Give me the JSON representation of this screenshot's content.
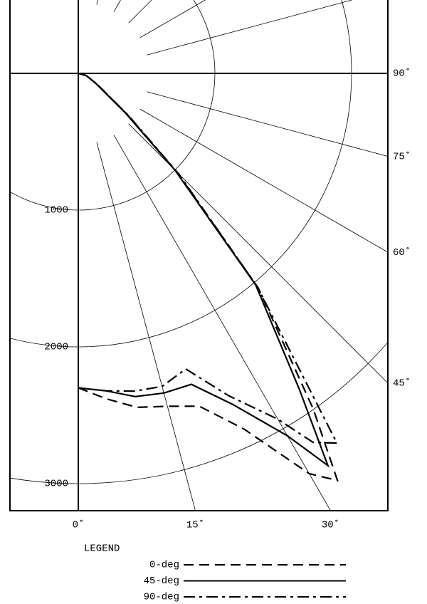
{
  "chart_data": {
    "type": "polar",
    "x": [
      0,
      5,
      10,
      15,
      20,
      25,
      30,
      32.5,
      35,
      40,
      45,
      50,
      60,
      75,
      90
    ],
    "series": [
      {
        "name": "0-deg",
        "color": "#000000",
        "line_style": "dashed",
        "values": [
          2300,
          2390,
          2480,
          2520,
          2590,
          2870,
          3380,
          3530,
          3000,
          2050,
          1020,
          470,
          160,
          60,
          0
        ]
      },
      {
        "name": "45-deg",
        "color": "#000000",
        "line_style": "solid",
        "values": [
          2300,
          2330,
          2400,
          2420,
          2420,
          2670,
          3060,
          3400,
          2820,
          2020,
          1000,
          450,
          150,
          60,
          0
        ]
      },
      {
        "name": "90-deg",
        "color": "#000000",
        "line_style": "dashdot",
        "values": [
          2300,
          2330,
          2360,
          2370,
          2300,
          2600,
          2920,
          3200,
          3300,
          2040,
          1040,
          480,
          160,
          60,
          0
        ]
      }
    ],
    "rlim": [
      0,
      3000
    ],
    "rticks": [
      1000,
      2000,
      3000
    ],
    "angle_ticks": [
      {
        "value": 0,
        "label": "0˚"
      },
      {
        "value": 15,
        "label": "15˚"
      },
      {
        "value": 30,
        "label": "30˚"
      },
      {
        "value": 45,
        "label": "45˚"
      },
      {
        "value": 60,
        "label": "60˚"
      },
      {
        "value": 75,
        "label": "75˚"
      },
      {
        "value": 90,
        "label": "90˚"
      }
    ],
    "legend_title": "LEGEND",
    "grid": true
  }
}
